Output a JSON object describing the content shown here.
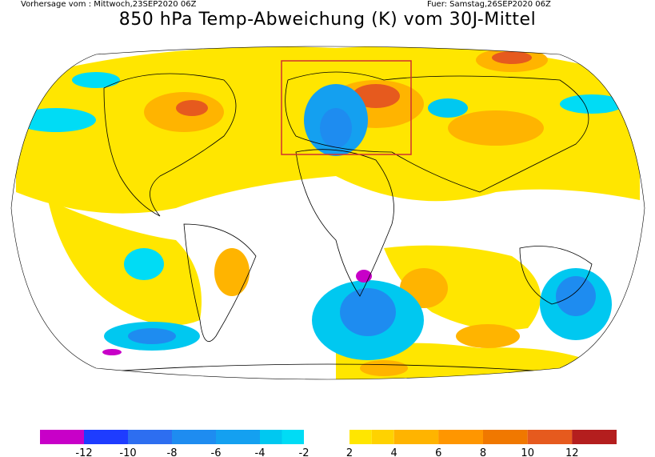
{
  "header": {
    "left": "Vorhersage vom : Mittwoch,23SEP2020 06Z",
    "right": "Fuer: Samstag,26SEP2020 06Z",
    "title": "850 hPa Temp-Abweichung (K) vom 30J-Mittel"
  },
  "colorbar": {
    "negative": [
      {
        "range": [
          -14,
          -12
        ],
        "color": "#c800c8"
      },
      {
        "range": [
          -12,
          -10
        ],
        "color": "#1e3cff"
      },
      {
        "range": [
          -10,
          -8
        ],
        "color": "#2d6ef0"
      },
      {
        "range": [
          -8,
          -6
        ],
        "color": "#1e8cf0"
      },
      {
        "range": [
          -6,
          -4
        ],
        "color": "#14a0f0"
      },
      {
        "range": [
          -4,
          -3
        ],
        "color": "#00c8f0"
      },
      {
        "range": [
          -3,
          -2
        ],
        "color": "#00dcf5"
      }
    ],
    "positive": [
      {
        "range": [
          2,
          3
        ],
        "color": "#ffe600"
      },
      {
        "range": [
          3,
          4
        ],
        "color": "#ffd200"
      },
      {
        "range": [
          4,
          6
        ],
        "color": "#ffb400"
      },
      {
        "range": [
          6,
          8
        ],
        "color": "#ff9600"
      },
      {
        "range": [
          8,
          10
        ],
        "color": "#f07800"
      },
      {
        "range": [
          10,
          12
        ],
        "color": "#e65a1e"
      },
      {
        "range": [
          12,
          14
        ],
        "color": "#b41e1e"
      }
    ],
    "labels": [
      "-12",
      "-10",
      "-8",
      "-6",
      "-4",
      "-2",
      "2",
      "4",
      "6",
      "8",
      "10",
      "12"
    ]
  },
  "map": {
    "projection": "Robinson (global)",
    "highlight_box_color": "#d03030",
    "ocean_neutral_color": "#ffffff"
  }
}
